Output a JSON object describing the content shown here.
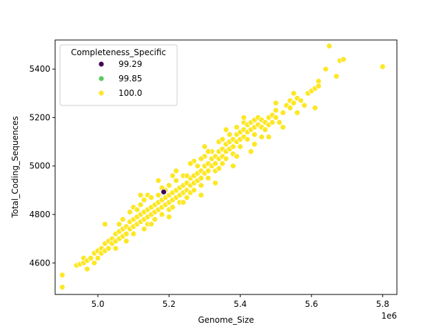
{
  "chart_data": {
    "type": "scatter",
    "xlabel": "Genome_Size",
    "ylabel": "Total_Coding_Sequences",
    "x_offset_label": "1e6",
    "xlim": [
      4.88,
      5.84
    ],
    "ylim": [
      4470,
      5520
    ],
    "x_ticks": [
      5.0,
      5.2,
      5.4,
      5.6,
      5.8
    ],
    "x_tick_labels": [
      "5.0",
      "5.2",
      "5.4",
      "5.6",
      "5.8"
    ],
    "y_ticks": [
      4600,
      4800,
      5000,
      5200,
      5400
    ],
    "y_tick_labels": [
      "4600",
      "4800",
      "5000",
      "5200",
      "5400"
    ],
    "grid": false,
    "legend": {
      "title": "Completeness_Specific",
      "placement": "upper-left",
      "entries": [
        {
          "label": "99.29",
          "color": "#440154"
        },
        {
          "label": "99.85",
          "color": "#5ec962"
        },
        {
          "label": "100.0",
          "color": "#fde725"
        }
      ]
    },
    "series": [
      {
        "name": "99.29",
        "color": "#440154",
        "points": [
          [
            5.185,
            4893
          ]
        ]
      },
      {
        "name": "99.85",
        "color": "#5ec962",
        "points": []
      },
      {
        "name": "100.0",
        "color": "#fde725",
        "points": [
          [
            4.9,
            4550
          ],
          [
            4.9,
            4500
          ],
          [
            4.94,
            4590
          ],
          [
            4.95,
            4595
          ],
          [
            4.96,
            4620
          ],
          [
            4.96,
            4600
          ],
          [
            4.97,
            4575
          ],
          [
            4.97,
            4610
          ],
          [
            4.98,
            4620
          ],
          [
            4.99,
            4640
          ],
          [
            4.99,
            4600
          ],
          [
            5.0,
            4650
          ],
          [
            5.0,
            4620
          ],
          [
            5.01,
            4660
          ],
          [
            5.01,
            4640
          ],
          [
            5.02,
            4680
          ],
          [
            5.02,
            4650
          ],
          [
            5.02,
            4760
          ],
          [
            5.03,
            4690
          ],
          [
            5.03,
            4660
          ],
          [
            5.04,
            4700
          ],
          [
            5.04,
            4680
          ],
          [
            5.05,
            4720
          ],
          [
            5.05,
            4690
          ],
          [
            5.06,
            4730
          ],
          [
            5.06,
            4700
          ],
          [
            5.06,
            4760
          ],
          [
            5.07,
            4740
          ],
          [
            5.07,
            4710
          ],
          [
            5.07,
            4780
          ],
          [
            5.08,
            4750
          ],
          [
            5.08,
            4720
          ],
          [
            5.09,
            4770
          ],
          [
            5.09,
            4740
          ],
          [
            5.09,
            4810
          ],
          [
            5.1,
            4780
          ],
          [
            5.1,
            4750
          ],
          [
            5.1,
            4830
          ],
          [
            5.11,
            4790
          ],
          [
            5.11,
            4760
          ],
          [
            5.11,
            4820
          ],
          [
            5.12,
            4800
          ],
          [
            5.12,
            4770
          ],
          [
            5.12,
            4840
          ],
          [
            5.13,
            4810
          ],
          [
            5.13,
            4780
          ],
          [
            5.13,
            4860
          ],
          [
            5.14,
            4820
          ],
          [
            5.14,
            4790
          ],
          [
            5.14,
            4760
          ],
          [
            5.14,
            4880
          ],
          [
            5.15,
            4830
          ],
          [
            5.15,
            4800
          ],
          [
            5.15,
            4870
          ],
          [
            5.16,
            4840
          ],
          [
            5.16,
            4810
          ],
          [
            5.16,
            4780
          ],
          [
            5.17,
            4850
          ],
          [
            5.17,
            4820
          ],
          [
            5.17,
            4880
          ],
          [
            5.18,
            4860
          ],
          [
            5.18,
            4830
          ],
          [
            5.18,
            4800
          ],
          [
            5.19,
            4870
          ],
          [
            5.19,
            4840
          ],
          [
            5.19,
            4900
          ],
          [
            5.2,
            4880
          ],
          [
            5.2,
            4850
          ],
          [
            5.2,
            4820
          ],
          [
            5.2,
            4920
          ],
          [
            5.21,
            4890
          ],
          [
            5.21,
            4860
          ],
          [
            5.21,
            4830
          ],
          [
            5.22,
            4900
          ],
          [
            5.22,
            4870
          ],
          [
            5.22,
            4940
          ],
          [
            5.23,
            4910
          ],
          [
            5.23,
            4880
          ],
          [
            5.23,
            4850
          ],
          [
            5.24,
            4920
          ],
          [
            5.24,
            4890
          ],
          [
            5.24,
            4960
          ],
          [
            5.25,
            4930
          ],
          [
            5.25,
            4900
          ],
          [
            5.25,
            4870
          ],
          [
            5.26,
            4950
          ],
          [
            5.26,
            4920
          ],
          [
            5.26,
            4890
          ],
          [
            5.27,
            4960
          ],
          [
            5.27,
            4930
          ],
          [
            5.27,
            4900
          ],
          [
            5.28,
            4970
          ],
          [
            5.28,
            4940
          ],
          [
            5.28,
            5000
          ],
          [
            5.29,
            4980
          ],
          [
            5.29,
            4950
          ],
          [
            5.29,
            4920
          ],
          [
            5.3,
            5000
          ],
          [
            5.3,
            4970
          ],
          [
            5.3,
            5040
          ],
          [
            5.31,
            5010
          ],
          [
            5.31,
            4980
          ],
          [
            5.31,
            4950
          ],
          [
            5.32,
            5030
          ],
          [
            5.32,
            5000
          ],
          [
            5.32,
            5060
          ],
          [
            5.33,
            5040
          ],
          [
            5.33,
            5010
          ],
          [
            5.33,
            4980
          ],
          [
            5.34,
            5060
          ],
          [
            5.34,
            5030
          ],
          [
            5.34,
            5100
          ],
          [
            5.35,
            5070
          ],
          [
            5.35,
            5040
          ],
          [
            5.35,
            5010
          ],
          [
            5.36,
            5090
          ],
          [
            5.36,
            5060
          ],
          [
            5.36,
            5030
          ],
          [
            5.37,
            5100
          ],
          [
            5.37,
            5070
          ],
          [
            5.37,
            5130
          ],
          [
            5.38,
            5110
          ],
          [
            5.38,
            5080
          ],
          [
            5.38,
            5050
          ],
          [
            5.39,
            5130
          ],
          [
            5.39,
            5100
          ],
          [
            5.39,
            5160
          ],
          [
            5.4,
            5140
          ],
          [
            5.4,
            5110
          ],
          [
            5.4,
            5080
          ],
          [
            5.41,
            5150
          ],
          [
            5.41,
            5120
          ],
          [
            5.41,
            5180
          ],
          [
            5.42,
            5170
          ],
          [
            5.42,
            5140
          ],
          [
            5.42,
            5110
          ],
          [
            5.43,
            5180
          ],
          [
            5.43,
            5150
          ],
          [
            5.44,
            5190
          ],
          [
            5.44,
            5160
          ],
          [
            5.44,
            5130
          ],
          [
            5.45,
            5200
          ],
          [
            5.45,
            5170
          ],
          [
            5.46,
            5190
          ],
          [
            5.46,
            5160
          ],
          [
            5.47,
            5180
          ],
          [
            5.47,
            5150
          ],
          [
            5.48,
            5200
          ],
          [
            5.48,
            5170
          ],
          [
            5.49,
            5210
          ],
          [
            5.49,
            5180
          ],
          [
            5.5,
            5200
          ],
          [
            5.5,
            5230
          ],
          [
            5.5,
            5260
          ],
          [
            5.51,
            5180
          ],
          [
            5.52,
            5220
          ],
          [
            5.53,
            5250
          ],
          [
            5.54,
            5270
          ],
          [
            5.54,
            5240
          ],
          [
            5.55,
            5300
          ],
          [
            5.55,
            5260
          ],
          [
            5.56,
            5220
          ],
          [
            5.56,
            5280
          ],
          [
            5.57,
            5270
          ],
          [
            5.58,
            5250
          ],
          [
            5.59,
            5300
          ],
          [
            5.6,
            5310
          ],
          [
            5.61,
            5240
          ],
          [
            5.61,
            5320
          ],
          [
            5.62,
            5350
          ],
          [
            5.62,
            5330
          ],
          [
            5.64,
            5400
          ],
          [
            5.65,
            5495
          ],
          [
            5.67,
            5370
          ],
          [
            5.68,
            5435
          ],
          [
            5.69,
            5440
          ],
          [
            5.8,
            5410
          ],
          [
            5.29,
            5030
          ],
          [
            5.25,
            4960
          ],
          [
            5.18,
            4910
          ],
          [
            5.13,
            4740
          ],
          [
            5.08,
            4690
          ],
          [
            5.34,
            4990
          ],
          [
            5.39,
            5040
          ],
          [
            5.44,
            5090
          ],
          [
            5.22,
            4980
          ],
          [
            5.27,
            5020
          ],
          [
            5.31,
            5060
          ],
          [
            5.15,
            4760
          ],
          [
            5.1,
            4720
          ],
          [
            5.36,
            5150
          ],
          [
            5.41,
            5200
          ],
          [
            5.46,
            5120
          ],
          [
            5.52,
            5160
          ],
          [
            5.05,
            4660
          ],
          [
            5.2,
            4790
          ],
          [
            5.24,
            4850
          ],
          [
            5.29,
            4880
          ],
          [
            5.33,
            4930
          ],
          [
            5.38,
            5000
          ],
          [
            5.43,
            5060
          ],
          [
            5.48,
            5120
          ],
          [
            5.17,
            4940
          ],
          [
            5.12,
            4880
          ],
          [
            5.21,
            4960
          ],
          [
            5.26,
            5010
          ],
          [
            5.3,
            5080
          ],
          [
            5.35,
            5110
          ]
        ]
      }
    ]
  }
}
